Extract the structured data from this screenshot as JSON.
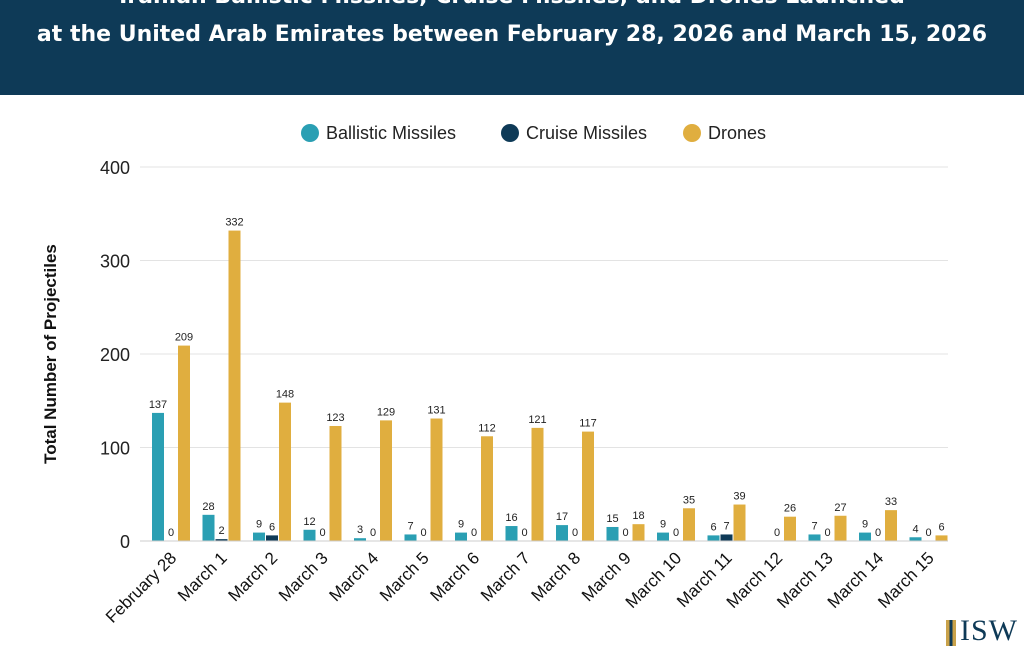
{
  "header": {
    "title_line1": "Iranian Ballistic Missiles, Cruise Missiles, and Drones Launched",
    "title_line2": "at the United Arab Emirates between February 28, 2026 and March 15, 2026"
  },
  "logo": {
    "text": "ISW"
  },
  "chart_data": {
    "type": "bar",
    "title": "Iranian Ballistic Missiles, Cruise Missiles, and Drones Launched at the United Arab Emirates between February 28, 2026 and March 15, 2026",
    "xlabel": "",
    "ylabel": "Total Number of Projectiles",
    "ylim": [
      0,
      400
    ],
    "yticks": [
      0,
      100,
      200,
      300,
      400
    ],
    "grid": true,
    "legend_position": "top-center",
    "categories": [
      "February 28",
      "March 1",
      "March 2",
      "March 3",
      "March 4",
      "March 5",
      "March 6",
      "March 7",
      "March 8",
      "March 9",
      "March 10",
      "March 11",
      "March 12",
      "March 13",
      "March 14",
      "March 15"
    ],
    "series": [
      {
        "name": "Ballistic Missiles",
        "color": "#2a9fb3",
        "values": [
          137,
          28,
          9,
          12,
          3,
          7,
          9,
          16,
          17,
          15,
          9,
          6,
          null,
          7,
          9,
          4
        ]
      },
      {
        "name": "Cruise Missiles",
        "color": "#0e3a57",
        "values": [
          0,
          2,
          6,
          0,
          0,
          0,
          0,
          0,
          0,
          0,
          0,
          7,
          0,
          0,
          0,
          0
        ]
      },
      {
        "name": "Drones",
        "color": "#e0ae3f",
        "values": [
          209,
          332,
          148,
          123,
          129,
          131,
          112,
          121,
          117,
          18,
          35,
          39,
          26,
          27,
          33,
          6
        ]
      }
    ]
  }
}
